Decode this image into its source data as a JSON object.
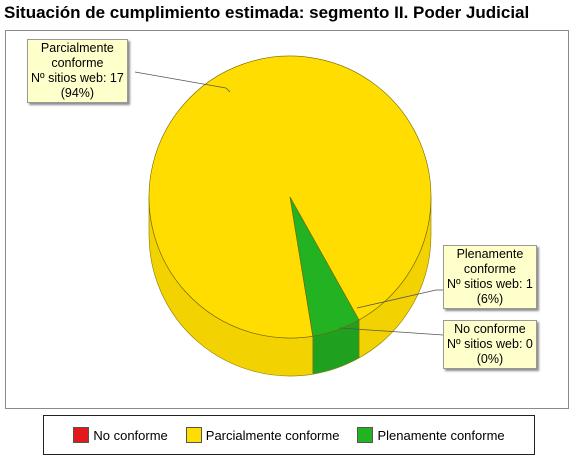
{
  "title": "Situación de cumplimiento estimada: segmento II. Poder Judicial",
  "colors": {
    "no_conforme": "#e31a1c",
    "parcialmente_conforme": "#ffdd00",
    "plenamente_conforme": "#22b222",
    "parcialmente_conforme_side": "#f2d200",
    "plenamente_conforme_side": "#1fa01f"
  },
  "chart_data": {
    "type": "pie",
    "title": "Situación de cumplimiento estimada: segmento II. Poder Judicial",
    "style": "3d",
    "legend_position": "bottom",
    "categories": [
      "No conforme",
      "Parcialmente conforme",
      "Plenamente conforme"
    ],
    "values": [
      0,
      17,
      1
    ],
    "percentages": [
      0,
      94,
      6
    ],
    "labels": [
      {
        "name": "No conforme",
        "line2": "",
        "count_text": "Nº sitios web: 0",
        "pct_text": "(0%)"
      },
      {
        "name": "Parcialmente",
        "line2": "conforme",
        "count_text": "Nº sitios web: 17",
        "pct_text": "(94%)"
      },
      {
        "name": "Plenamente",
        "line2": "conforme",
        "count_text": "Nº sitios web: 1",
        "pct_text": "(6%)"
      }
    ]
  },
  "legend": [
    {
      "label": "No conforme",
      "color": "#e31a1c"
    },
    {
      "label": "Parcialmente conforme",
      "color": "#ffdd00"
    },
    {
      "label": "Plenamente conforme",
      "color": "#22b222"
    }
  ]
}
